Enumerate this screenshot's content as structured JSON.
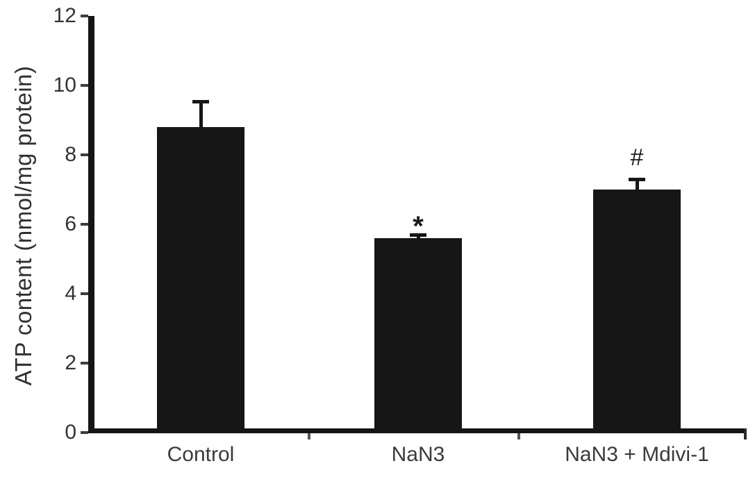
{
  "chart_data": {
    "type": "bar",
    "categories": [
      "Control",
      "NaN3",
      "NaN3 + Mdivi-1"
    ],
    "values": [
      8.8,
      5.6,
      7.0
    ],
    "errors": [
      0.75,
      0.1,
      0.3
    ],
    "annotations": [
      "",
      "*",
      "#"
    ],
    "title": "",
    "xlabel": "",
    "ylabel": "ATP content (nmol/mg protein)",
    "ylim": [
      0,
      12
    ],
    "yticks": [
      0,
      2,
      4,
      6,
      8,
      10,
      12
    ],
    "grid": false,
    "legend": false,
    "bar_color": "#161616",
    "axis_color": "#151515",
    "text_color": "#333333",
    "background_color": "#ffffff"
  }
}
